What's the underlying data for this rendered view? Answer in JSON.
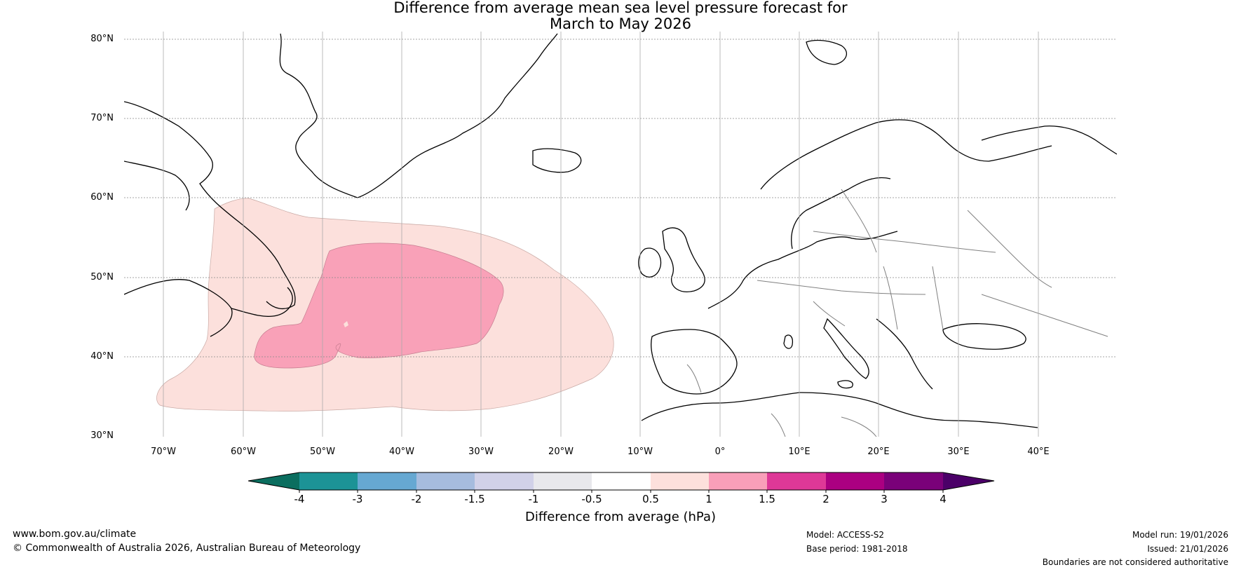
{
  "title": {
    "line1": "Difference from average mean sea level pressure forecast for",
    "line2": "March to May 2026"
  },
  "map": {
    "lat_labels": [
      "80°N",
      "70°N",
      "60°N",
      "50°N",
      "40°N",
      "30°N"
    ],
    "lon_labels": [
      "70°W",
      "60°W",
      "50°W",
      "40°W",
      "30°W",
      "20°W",
      "10°W",
      "0°",
      "10°E",
      "20°E",
      "30°E",
      "40°E"
    ],
    "extent": {
      "lon_min": -75,
      "lon_max": 50,
      "lat_min": 30,
      "lat_max": 81
    },
    "anomaly_regions": [
      {
        "name": "outer-anomaly-0.5-to-1",
        "level": "0.5 to 1",
        "color": "#fce0dc"
      },
      {
        "name": "inner-anomaly-1-to-1.5",
        "level": "1 to 1.5",
        "color": "#f9a1b8"
      }
    ],
    "coastline_color": "#000000",
    "border_color": "#808080",
    "grid_color": "#888888"
  },
  "colorbar": {
    "label": "Difference from average (hPa)",
    "ticks": [
      "-4",
      "-3",
      "-2",
      "-1.5",
      "-1",
      "-0.5",
      "0.5",
      "1",
      "1.5",
      "2",
      "3",
      "4"
    ],
    "low_extend_color": "#0b6e5f",
    "high_extend_color": "#4b0068",
    "bins": [
      {
        "range": "-4 to -3",
        "color": "#1c9396"
      },
      {
        "range": "-3 to -2",
        "color": "#66a8d2"
      },
      {
        "range": "-2 to -1.5",
        "color": "#a6bcde"
      },
      {
        "range": "-1.5 to -1",
        "color": "#d1d1e8"
      },
      {
        "range": "-1 to -0.5",
        "color": "#e8e8ec"
      },
      {
        "range": "-0.5 to 0.5",
        "color": "#ffffff"
      },
      {
        "range": "0.5 to 1",
        "color": "#fde0dc"
      },
      {
        "range": "1 to 1.5",
        "color": "#f99fb9"
      },
      {
        "range": "1.5 to 2",
        "color": "#de3897"
      },
      {
        "range": "2 to 3",
        "color": "#ab0081"
      },
      {
        "range": "3 to 4",
        "color": "#7a0179"
      }
    ]
  },
  "footer": {
    "website": "www.bom.gov.au/climate",
    "copyright": "© Commonwealth of Australia 2026, Australian Bureau of Meteorology",
    "model": "Model: ACCESS-S2",
    "base_period": "Base period: 1981-2018",
    "model_run": "Model run: 19/01/2026",
    "issued": "Issued: 21/01/2026",
    "disclaimer": "Boundaries are not considered authoritative"
  }
}
